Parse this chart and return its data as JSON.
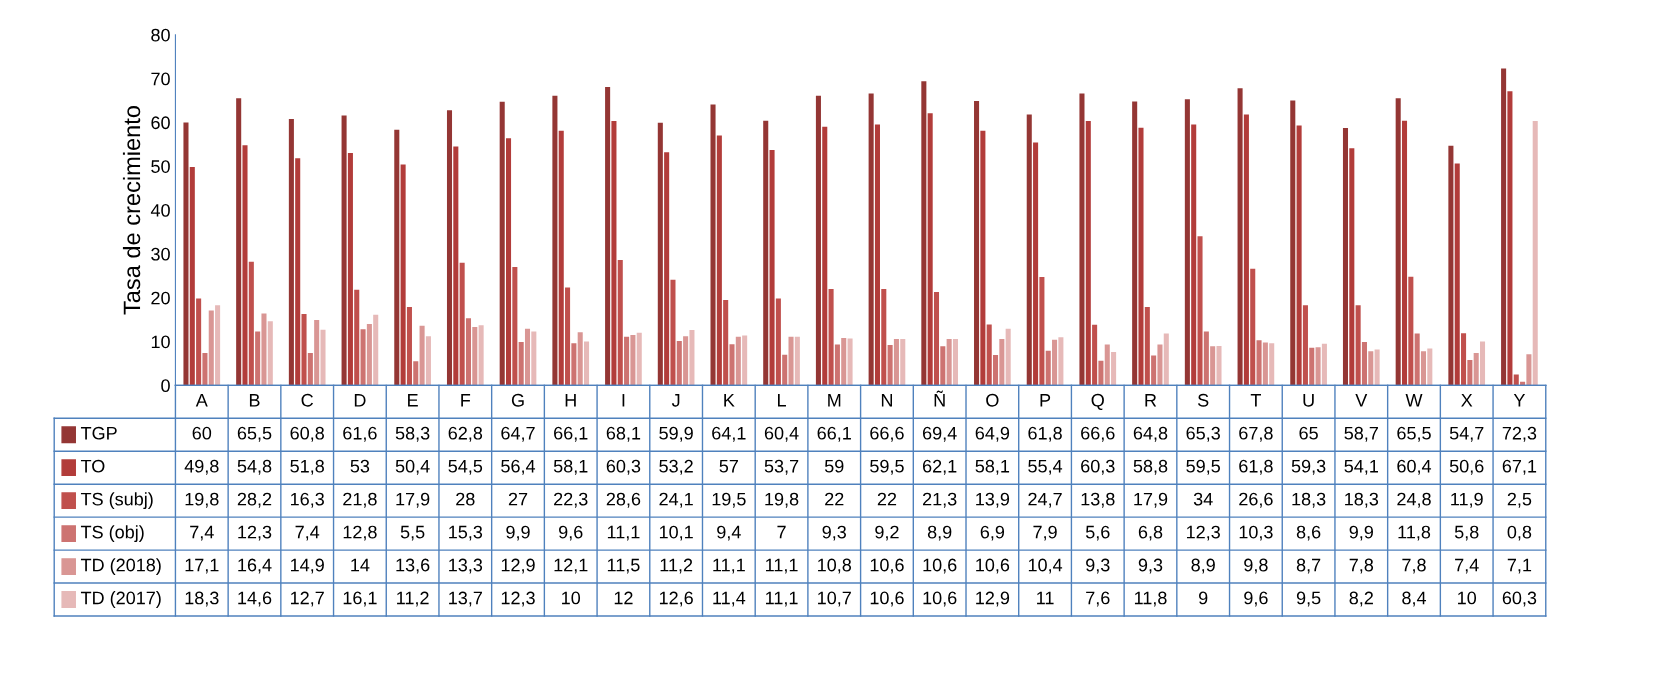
{
  "chart_data": {
    "type": "bar",
    "ylabel": "Tasa de crecimiento",
    "categories": [
      "A",
      "B",
      "C",
      "D",
      "E",
      "F",
      "G",
      "H",
      "I",
      "J",
      "K",
      "L",
      "M",
      "N",
      "Ñ",
      "O",
      "P",
      "Q",
      "R",
      "S",
      "T",
      "U",
      "V",
      "W",
      "X",
      "Y"
    ],
    "series": [
      {
        "name": "TGP",
        "color": "#943634",
        "values": [
          60,
          65.5,
          60.8,
          61.6,
          58.3,
          62.8,
          64.7,
          66.1,
          68.1,
          59.9,
          64.1,
          60.4,
          66.1,
          66.6,
          69.4,
          64.9,
          61.8,
          66.6,
          64.8,
          65.3,
          67.8,
          65,
          58.7,
          65.5,
          54.7,
          72.3
        ],
        "value_labels": [
          "60",
          "65,5",
          "60,8",
          "61,6",
          "58,3",
          "62,8",
          "64,7",
          "66,1",
          "68,1",
          "59,9",
          "64,1",
          "60,4",
          "66,1",
          "66,6",
          "69,4",
          "64,9",
          "61,8",
          "66,6",
          "64,8",
          "65,3",
          "67,8",
          "65",
          "58,7",
          "65,5",
          "54,7",
          "72,3"
        ]
      },
      {
        "name": "TO",
        "color": "#b23c3a",
        "values": [
          49.8,
          54.8,
          51.8,
          53,
          50.4,
          54.5,
          56.4,
          58.1,
          60.3,
          53.2,
          57,
          53.7,
          59,
          59.5,
          62.1,
          58.1,
          55.4,
          60.3,
          58.8,
          59.5,
          61.8,
          59.3,
          54.1,
          60.4,
          50.6,
          67.1
        ],
        "value_labels": [
          "49,8",
          "54,8",
          "51,8",
          "53",
          "50,4",
          "54,5",
          "56,4",
          "58,1",
          "60,3",
          "53,2",
          "57",
          "53,7",
          "59",
          "59,5",
          "62,1",
          "58,1",
          "55,4",
          "60,3",
          "58,8",
          "59,5",
          "61,8",
          "59,3",
          "54,1",
          "60,4",
          "50,6",
          "67,1"
        ]
      },
      {
        "name": "TS (subj)",
        "color": "#c0504d",
        "values": [
          19.8,
          28.2,
          16.3,
          21.8,
          17.9,
          28,
          27,
          22.3,
          28.6,
          24.1,
          19.5,
          19.8,
          22,
          22,
          21.3,
          13.9,
          24.7,
          13.8,
          17.9,
          34,
          26.6,
          18.3,
          18.3,
          24.8,
          11.9,
          2.5
        ],
        "value_labels": [
          "19,8",
          "28,2",
          "16,3",
          "21,8",
          "17,9",
          "28",
          "27",
          "22,3",
          "28,6",
          "24,1",
          "19,5",
          "19,8",
          "22",
          "22",
          "21,3",
          "13,9",
          "24,7",
          "13,8",
          "17,9",
          "34",
          "26,6",
          "18,3",
          "18,3",
          "24,8",
          "11,9",
          "2,5"
        ]
      },
      {
        "name": "TS (obj)",
        "color": "#cd7371",
        "values": [
          7.4,
          12.3,
          7.4,
          12.8,
          5.5,
          15.3,
          9.9,
          9.6,
          11.1,
          10.1,
          9.4,
          7,
          9.3,
          9.2,
          8.9,
          6.9,
          7.9,
          5.6,
          6.8,
          12.3,
          10.3,
          8.6,
          9.9,
          11.8,
          5.8,
          0.8
        ],
        "value_labels": [
          "7,4",
          "12,3",
          "7,4",
          "12,8",
          "5,5",
          "15,3",
          "9,9",
          "9,6",
          "11,1",
          "10,1",
          "9,4",
          "7",
          "9,3",
          "9,2",
          "8,9",
          "6,9",
          "7,9",
          "5,6",
          "6,8",
          "12,3",
          "10,3",
          "8,6",
          "9,9",
          "11,8",
          "5,8",
          "0,8"
        ]
      },
      {
        "name": "TD (2018)",
        "color": "#d99694",
        "values": [
          17.1,
          16.4,
          14.9,
          14,
          13.6,
          13.3,
          12.9,
          12.1,
          11.5,
          11.2,
          11.1,
          11.1,
          10.8,
          10.6,
          10.6,
          10.6,
          10.4,
          9.3,
          9.3,
          8.9,
          9.8,
          8.7,
          7.8,
          7.8,
          7.4,
          7.1
        ],
        "value_labels": [
          "17,1",
          "16,4",
          "14,9",
          "14",
          "13,6",
          "13,3",
          "12,9",
          "12,1",
          "11,5",
          "11,2",
          "11,1",
          "11,1",
          "10,8",
          "10,6",
          "10,6",
          "10,6",
          "10,4",
          "9,3",
          "9,3",
          "8,9",
          "9,8",
          "8,7",
          "7,8",
          "7,8",
          "7,4",
          "7,1"
        ]
      },
      {
        "name": "TD (2017)",
        "color": "#e6b9b8",
        "values": [
          18.3,
          14.6,
          12.7,
          16.1,
          11.2,
          13.7,
          12.3,
          10,
          12,
          12.6,
          11.4,
          11.1,
          10.7,
          10.6,
          10.6,
          12.9,
          11,
          7.6,
          11.8,
          9,
          9.6,
          9.5,
          8.2,
          8.4,
          10,
          60.3
        ],
        "value_labels": [
          "18,3",
          "14,6",
          "12,7",
          "16,1",
          "11,2",
          "13,7",
          "12,3",
          "10",
          "12",
          "12,6",
          "11,4",
          "11,1",
          "10,7",
          "10,6",
          "10,6",
          "12,9",
          "11",
          "7,6",
          "11,8",
          "9",
          "9,6",
          "9,5",
          "8,2",
          "8,4",
          "10",
          "60,3"
        ]
      }
    ],
    "ylim": [
      0,
      80
    ],
    "yticks": [
      0,
      10,
      20,
      30,
      40,
      50,
      60,
      70,
      80
    ],
    "grid": false,
    "legend": "bottom"
  }
}
